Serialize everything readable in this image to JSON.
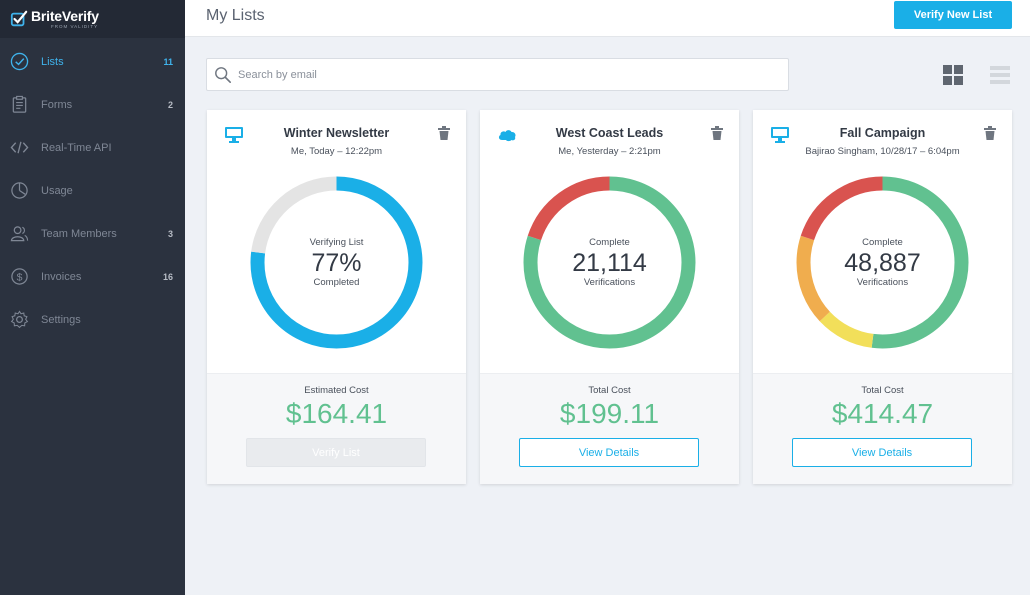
{
  "brand": {
    "name": "BriteVerify",
    "sub": "FROM VALIDITY"
  },
  "sidebar": {
    "items": [
      {
        "label": "Lists",
        "count": "11",
        "icon": "check-circle-icon",
        "active": true
      },
      {
        "label": "Forms",
        "count": "2",
        "icon": "clipboard-icon"
      },
      {
        "label": "Real-Time API",
        "count": "",
        "icon": "code-icon"
      },
      {
        "label": "Usage",
        "count": "",
        "icon": "pie-chart-icon"
      },
      {
        "label": "Team Members",
        "count": "3",
        "icon": "users-icon"
      },
      {
        "label": "Invoices",
        "count": "16",
        "icon": "dollar-icon"
      },
      {
        "label": "Settings",
        "count": "",
        "icon": "gear-icon"
      }
    ]
  },
  "header": {
    "title": "My Lists",
    "primary_button": "Verify New List"
  },
  "search": {
    "placeholder": "Search by email"
  },
  "colors": {
    "accent": "#1aafe7",
    "green": "#61c190",
    "red": "#d9534f",
    "orange": "#f0ad4e",
    "yellow": "#f2df5a",
    "track": "#e4e4e4"
  },
  "cards": [
    {
      "title": "Winter Newsletter",
      "meta": "Me, Today – 12:22pm",
      "source_icon": "desktop-icon",
      "status_label": "Verifying List",
      "status_value": "77%",
      "status_sub": "Completed",
      "progress": 0.77,
      "segments": [
        {
          "fraction": 0.77,
          "color": "#1aafe7"
        },
        {
          "fraction": 0.23,
          "color": "#e4e4e4"
        }
      ],
      "cost_label": "Estimated Cost",
      "cost_value": "$164.41",
      "button": "Verify List",
      "button_enabled": false
    },
    {
      "title": "West Coast Leads",
      "meta": "Me, Yesterday – 2:21pm",
      "source_icon": "salesforce-cloud-icon",
      "status_label": "Complete",
      "status_value": "21,114",
      "status_sub": "Verifications",
      "segments": [
        {
          "fraction": 0.8,
          "color": "#61c190"
        },
        {
          "fraction": 0.2,
          "color": "#d9534f"
        }
      ],
      "cost_label": "Total Cost",
      "cost_value": "$199.11",
      "button": "View Details",
      "button_enabled": true
    },
    {
      "title": "Fall Campaign",
      "meta": "Bajirao Singham, 10/28/17 – 6:04pm",
      "source_icon": "desktop-icon",
      "status_label": "Complete",
      "status_value": "48,887",
      "status_sub": "Verifications",
      "segments": [
        {
          "fraction": 0.52,
          "color": "#61c190"
        },
        {
          "fraction": 0.11,
          "color": "#f2df5a"
        },
        {
          "fraction": 0.17,
          "color": "#f0ad4e"
        },
        {
          "fraction": 0.2,
          "color": "#d9534f"
        }
      ],
      "cost_label": "Total Cost",
      "cost_value": "$414.47",
      "button": "View Details",
      "button_enabled": true
    }
  ]
}
